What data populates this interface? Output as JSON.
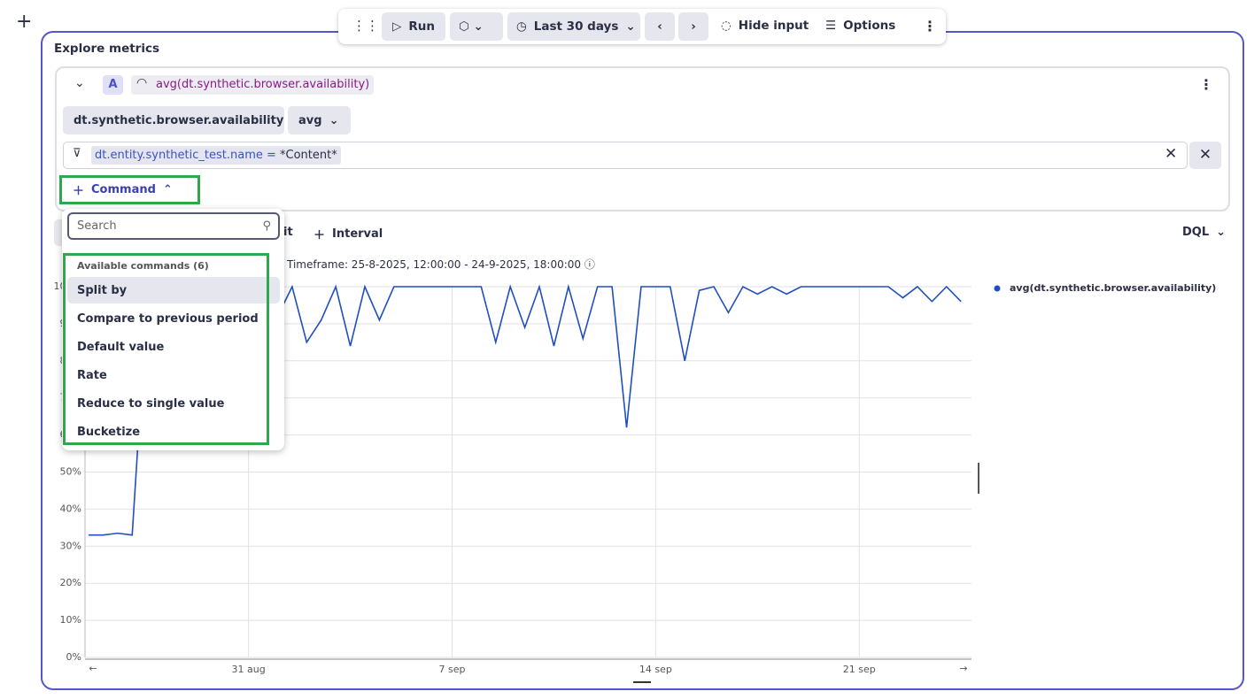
{
  "toolbar": {
    "run": "Run",
    "timeframe": "Last 30 days",
    "hide_input": "Hide input",
    "options": "Options"
  },
  "panel": {
    "title": "Explore metrics"
  },
  "query": {
    "letter": "A",
    "expression": "avg(dt.synthetic.browser.availability)",
    "metric": "dt.synthetic.browser.availability",
    "aggregation": "avg",
    "filter_key": "dt.entity.synthetic_test.name =",
    "filter_value": "*Content*",
    "command_button": "Command"
  },
  "dropdown": {
    "search_placeholder": "Search",
    "heading": "Available commands (6)",
    "items": [
      "Split by",
      "Compare to previous period",
      "Default value",
      "Rate",
      "Reduce to single value",
      "Bucketize"
    ]
  },
  "chart_toolbar": {
    "partial_button": "it",
    "interval": "Interval",
    "dql": "DQL"
  },
  "timeframe_label": "Timeframe: 25-8-2025, 12:00:00 - 24-9-2025, 18:00:00",
  "chart_data": {
    "type": "line",
    "categories": [
      null,
      null,
      null,
      null,
      null,
      null,
      null,
      null,
      null,
      null,
      null,
      "31 aug",
      null,
      null,
      null,
      null,
      null,
      null,
      null,
      null,
      null,
      null,
      null,
      null,
      null,
      "7 sep",
      null,
      null,
      null,
      null,
      null,
      null,
      null,
      null,
      null,
      null,
      null,
      null,
      null,
      "14 sep",
      null,
      null,
      null,
      null,
      null,
      null,
      null,
      null,
      null,
      null,
      null,
      null,
      null,
      "21 sep",
      null,
      null,
      null,
      null,
      null,
      null,
      null
    ],
    "series": [
      {
        "name": "avg(dt.synthetic.browser.availability)",
        "color": "#1f4fc1",
        "values": [
          33,
          33,
          33.5,
          33,
          95,
          100,
          98,
          100,
          100,
          97,
          100,
          100,
          100,
          92,
          100,
          85,
          91,
          100,
          84,
          100,
          91,
          100,
          100,
          100,
          100,
          100,
          100,
          100,
          85,
          100,
          89,
          100,
          84,
          100,
          86,
          100,
          100,
          62,
          100,
          100,
          100,
          80,
          99,
          100,
          93,
          100,
          98,
          100,
          98,
          100,
          100,
          100,
          100,
          100,
          100,
          100,
          97,
          100,
          96,
          100,
          96
        ]
      }
    ],
    "ylim": [
      0,
      100
    ],
    "yticks": [
      {
        "value": 0,
        "label": "0%"
      },
      {
        "value": 10,
        "label": "10%"
      },
      {
        "value": 20,
        "label": "20%"
      },
      {
        "value": 30,
        "label": "30%"
      },
      {
        "value": 40,
        "label": "40%"
      },
      {
        "value": 50,
        "label": "50%"
      },
      {
        "value": 60,
        "label": "60%"
      },
      {
        "value": 70,
        "label": "70%"
      },
      {
        "value": 80,
        "label": "80%"
      },
      {
        "value": 90,
        "label": "90%"
      },
      {
        "value": 100,
        "label": "100%"
      }
    ],
    "grid": true,
    "legend": "right"
  }
}
